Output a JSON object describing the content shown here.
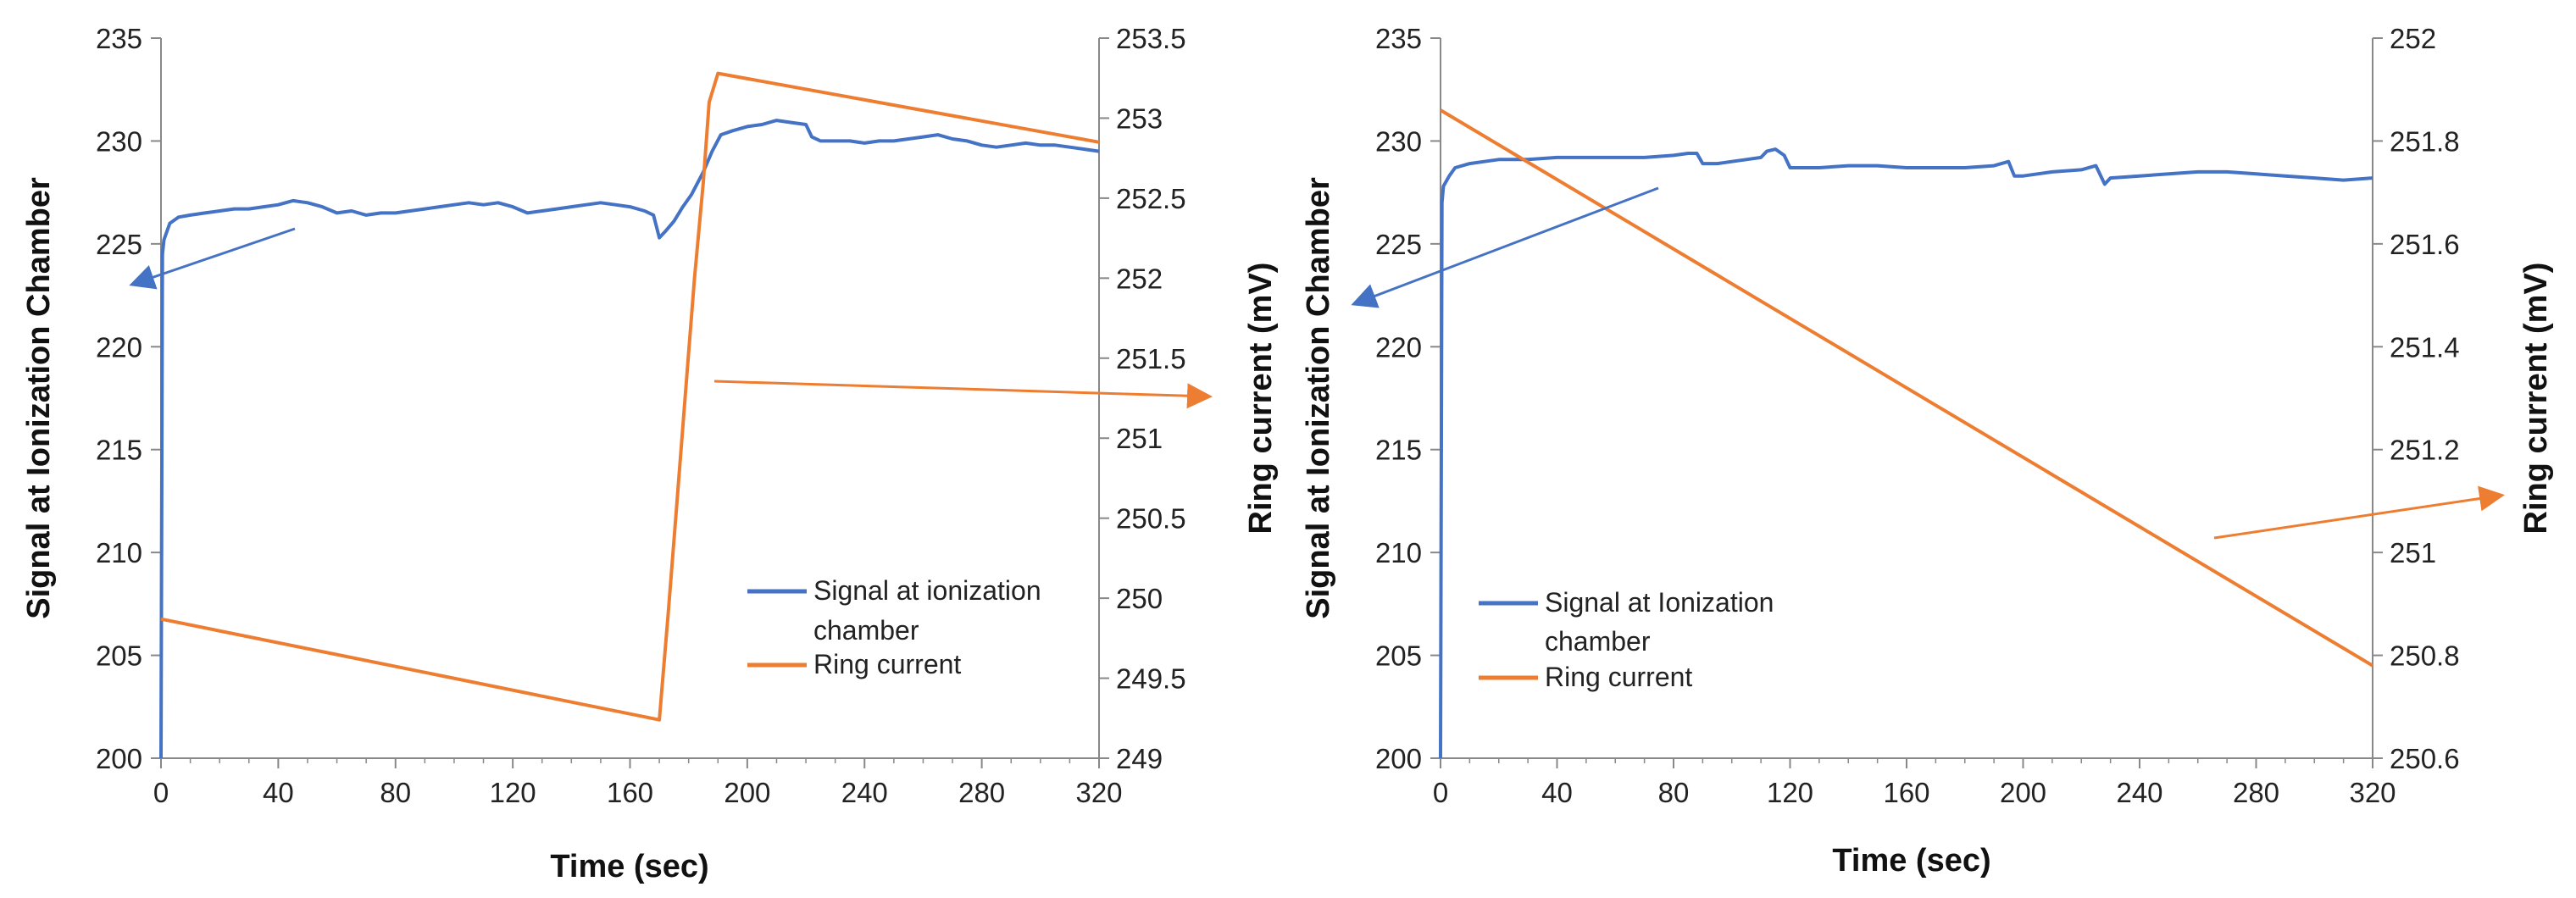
{
  "colors": {
    "signal": "#4472C4",
    "ring": "#ED7D31",
    "axis": "#888888"
  },
  "chart_data": [
    {
      "type": "line",
      "xlabel": "Time (sec)",
      "ylabel": "Signal at Ionization Chamber",
      "y2label": "Ring current (mV)",
      "xlim": [
        0,
        320
      ],
      "ylim": [
        200,
        235
      ],
      "y2lim": [
        249,
        253.5
      ],
      "x_ticks": [
        "0",
        "40",
        "80",
        "120",
        "160",
        "200",
        "240",
        "280",
        "320"
      ],
      "y_ticks": [
        "200",
        "205",
        "210",
        "215",
        "220",
        "225",
        "230",
        "235"
      ],
      "y2_ticks": [
        "249",
        "249.5",
        "250",
        "250.5",
        "251",
        "251.5",
        "252",
        "252.5",
        "253",
        "253.5"
      ],
      "legend": [
        "Signal at ionization chamber",
        "Ring current"
      ],
      "series": [
        {
          "name": "Signal at ionization chamber",
          "axis": "left",
          "x": [
            0,
            0.5,
            1,
            3,
            6,
            10,
            15,
            20,
            25,
            30,
            35,
            40,
            45,
            50,
            55,
            60,
            65,
            70,
            75,
            80,
            85,
            90,
            95,
            100,
            105,
            110,
            115,
            120,
            125,
            130,
            135,
            140,
            145,
            150,
            155,
            160,
            165,
            168,
            170,
            172,
            175,
            178,
            181,
            185,
            188,
            191,
            195,
            200,
            205,
            210,
            215,
            220,
            222,
            225,
            230,
            235,
            240,
            245,
            250,
            255,
            260,
            265,
            270,
            275,
            280,
            285,
            290,
            295,
            300,
            305,
            310,
            315,
            320
          ],
          "y": [
            200,
            224.5,
            225.2,
            226,
            226.3,
            226.4,
            226.5,
            226.6,
            226.7,
            226.7,
            226.8,
            226.9,
            227.1,
            227.0,
            226.8,
            226.5,
            226.6,
            226.4,
            226.5,
            226.5,
            226.6,
            226.7,
            226.8,
            226.9,
            227.0,
            226.9,
            227.0,
            226.8,
            226.5,
            226.6,
            226.7,
            226.8,
            226.9,
            227.0,
            226.9,
            226.8,
            226.6,
            226.4,
            225.3,
            225.6,
            226.1,
            226.8,
            227.4,
            228.5,
            229.5,
            230.3,
            230.5,
            230.7,
            230.8,
            231.0,
            230.9,
            230.8,
            230.2,
            230.0,
            230.0,
            230.0,
            229.9,
            230.0,
            230.0,
            230.1,
            230.2,
            230.3,
            230.1,
            230.0,
            229.8,
            229.7,
            229.8,
            229.9,
            229.8,
            229.8,
            229.7,
            229.6,
            229.5
          ]
        },
        {
          "name": "Ring current",
          "axis": "right",
          "x": [
            0,
            170,
            173,
            176,
            179,
            182,
            185,
            187,
            190,
            320
          ],
          "y": [
            249.87,
            249.24,
            249.9,
            250.6,
            251.3,
            252.0,
            252.6,
            253.1,
            253.28,
            252.85
          ]
        }
      ]
    },
    {
      "type": "line",
      "xlabel": "Time (sec)",
      "ylabel": "Signal at Ionization Chamber",
      "y2label": "Ring current (mV)",
      "xlim": [
        0,
        320
      ],
      "ylim": [
        200,
        235
      ],
      "y2lim": [
        250.6,
        252
      ],
      "x_ticks": [
        "0",
        "40",
        "80",
        "120",
        "160",
        "200",
        "240",
        "280",
        "320"
      ],
      "y_ticks": [
        "200",
        "205",
        "210",
        "215",
        "220",
        "225",
        "230",
        "235"
      ],
      "y2_ticks": [
        "250.6",
        "250.8",
        "251",
        "251.2",
        "251.4",
        "251.6",
        "251.8",
        "252"
      ],
      "legend": [
        "Signal at Ionization chamber",
        "Ring current"
      ],
      "series": [
        {
          "name": "Signal at Ionization chamber",
          "axis": "left",
          "x": [
            0,
            0.5,
            1,
            3,
            5,
            10,
            15,
            20,
            30,
            40,
            50,
            60,
            70,
            80,
            85,
            88,
            90,
            95,
            100,
            105,
            110,
            112,
            115,
            118,
            120,
            130,
            140,
            150,
            160,
            170,
            180,
            190,
            195,
            197,
            200,
            210,
            220,
            225,
            228,
            230,
            240,
            250,
            260,
            270,
            280,
            290,
            300,
            310,
            320
          ],
          "y": [
            200,
            227,
            227.8,
            228.3,
            228.7,
            228.9,
            229.0,
            229.1,
            229.1,
            229.2,
            229.2,
            229.2,
            229.2,
            229.3,
            229.4,
            229.4,
            228.9,
            228.9,
            229.0,
            229.1,
            229.2,
            229.5,
            229.6,
            229.3,
            228.7,
            228.7,
            228.8,
            228.8,
            228.7,
            228.7,
            228.7,
            228.8,
            229.0,
            228.3,
            228.3,
            228.5,
            228.6,
            228.8,
            227.9,
            228.2,
            228.3,
            228.4,
            228.5,
            228.5,
            228.4,
            228.3,
            228.2,
            228.1,
            228.2
          ]
        },
        {
          "name": "Ring current",
          "axis": "right",
          "x": [
            0,
            320
          ],
          "y": [
            251.86,
            250.78
          ]
        }
      ]
    }
  ]
}
